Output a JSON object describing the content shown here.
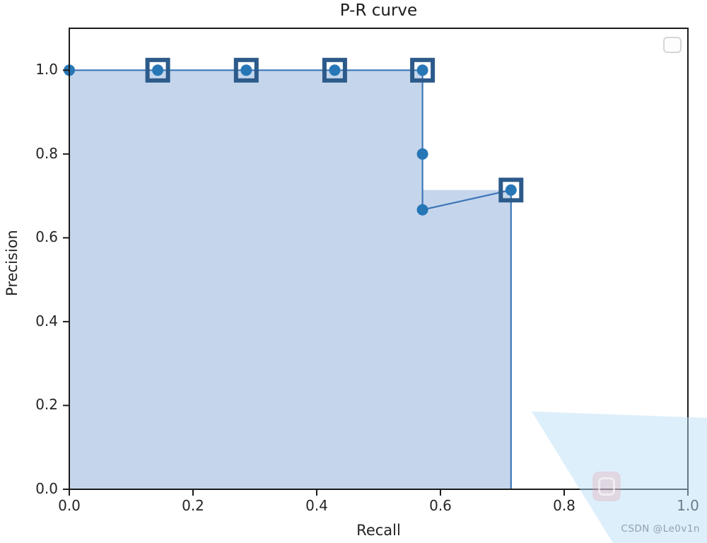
{
  "figure": {
    "title": "P-R curve",
    "xlabel": "Recall",
    "ylabel": "Precision"
  },
  "watermark": {
    "text": "CSDN @Le0v1n"
  },
  "chart_data": {
    "type": "line",
    "title": "P-R curve",
    "xlabel": "Recall",
    "ylabel": "Precision",
    "xlim": [
      0.0,
      1.0
    ],
    "ylim": [
      0.0,
      1.1
    ],
    "grid": false,
    "legend": {
      "visible": true,
      "position": "upper right",
      "entries": []
    },
    "x_ticks": [
      {
        "value": 0.0,
        "label": "0.0"
      },
      {
        "value": 0.2,
        "label": "0.2"
      },
      {
        "value": 0.4,
        "label": "0.4"
      },
      {
        "value": 0.6,
        "label": "0.6"
      },
      {
        "value": 0.8,
        "label": "0.8"
      },
      {
        "value": 1.0,
        "label": "1.0"
      }
    ],
    "y_ticks": [
      {
        "value": 0.0,
        "label": "0.0"
      },
      {
        "value": 0.2,
        "label": "0.2"
      },
      {
        "value": 0.4,
        "label": "0.4"
      },
      {
        "value": 0.6,
        "label": "0.6"
      },
      {
        "value": 0.8,
        "label": "0.8"
      },
      {
        "value": 1.0,
        "label": "1.0"
      }
    ],
    "series": [
      {
        "name": "P-R curve",
        "color": "#3d77b8",
        "line_width": 2.2,
        "points": [
          [
            0.0,
            1.0
          ],
          [
            0.143,
            1.0
          ],
          [
            0.286,
            1.0
          ],
          [
            0.429,
            1.0
          ],
          [
            0.571,
            1.0
          ],
          [
            0.571,
            0.8
          ],
          [
            0.571,
            0.667
          ],
          [
            0.714,
            0.714
          ],
          [
            0.714,
            0.0
          ]
        ]
      }
    ],
    "markers": {
      "circle_color": "#2777b7",
      "circle_points": [
        [
          0.0,
          1.0
        ],
        [
          0.143,
          1.0
        ],
        [
          0.286,
          1.0
        ],
        [
          0.429,
          1.0
        ],
        [
          0.571,
          1.0
        ],
        [
          0.571,
          0.8
        ],
        [
          0.571,
          0.667
        ],
        [
          0.714,
          0.714
        ]
      ],
      "square_color": "#2c5a8a",
      "square_points": [
        [
          0.143,
          1.0
        ],
        [
          0.286,
          1.0
        ],
        [
          0.429,
          1.0
        ],
        [
          0.571,
          1.0
        ],
        [
          0.714,
          0.714
        ]
      ]
    },
    "fill": {
      "color": "#c5d6ec",
      "envelope": [
        [
          0.0,
          0.0
        ],
        [
          0.0,
          1.0
        ],
        [
          0.571,
          1.0
        ],
        [
          0.571,
          0.714
        ],
        [
          0.714,
          0.714
        ],
        [
          0.714,
          0.0
        ]
      ]
    }
  }
}
